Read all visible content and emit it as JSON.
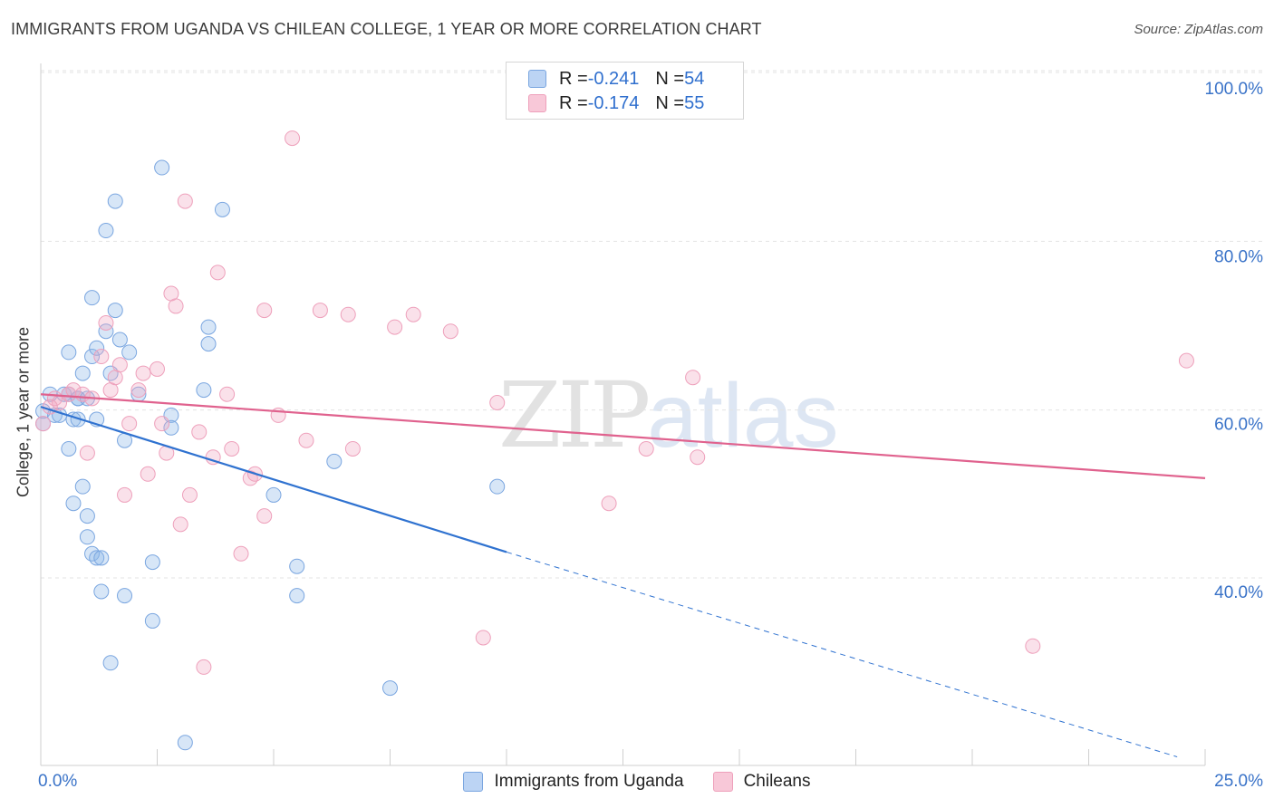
{
  "title": "IMMIGRANTS FROM UGANDA VS CHILEAN COLLEGE, 1 YEAR OR MORE CORRELATION CHART",
  "source": "Source: ZipAtlas.com",
  "watermark": {
    "zip": "ZIP",
    "atlas": "atlas"
  },
  "legend": {
    "rows": [
      {
        "r_label": "R = ",
        "r_value": "-0.241",
        "n_label": "N = ",
        "n_value": "54"
      },
      {
        "r_label": "R = ",
        "r_value": "-0.174",
        "n_label": "N = ",
        "n_value": "55"
      }
    ]
  },
  "chart_data": {
    "type": "scatter",
    "title": "IMMIGRANTS FROM UGANDA VS CHILEAN COLLEGE, 1 YEAR OR MORE CORRELATION CHART",
    "xlabel": "",
    "ylabel": "College, 1 year or more",
    "xlim": [
      0,
      25
    ],
    "ylim": [
      20,
      100
    ],
    "x_tick_labels": [
      "0.0%",
      "25.0%"
    ],
    "y_ticks": [
      40,
      60,
      80,
      100
    ],
    "y_tick_labels": [
      "40.0%",
      "60.0%",
      "80.0%",
      "100.0%"
    ],
    "grid": true,
    "series": [
      {
        "name": "Immigrants from Uganda",
        "color": "#8db7e8",
        "line_color": "#2f72d0",
        "trend": {
          "x0": 0,
          "y0": 62.0,
          "x1": 10.0,
          "y1": 44.7,
          "dash_to_x": 24.4,
          "dash_to_y": 20.3
        },
        "points": [
          [
            0.2,
            63.5
          ],
          [
            0.3,
            61.0
          ],
          [
            0.4,
            61.0
          ],
          [
            0.5,
            63.5
          ],
          [
            0.6,
            57.0
          ],
          [
            0.6,
            63.5
          ],
          [
            0.7,
            60.5
          ],
          [
            0.8,
            63.0
          ],
          [
            0.6,
            68.5
          ],
          [
            0.7,
            50.5
          ],
          [
            0.8,
            60.5
          ],
          [
            0.8,
            63.0
          ],
          [
            0.9,
            66.0
          ],
          [
            0.9,
            52.5
          ],
          [
            1.0,
            63.0
          ],
          [
            1.0,
            49.0
          ],
          [
            1.0,
            46.5
          ],
          [
            1.1,
            68.0
          ],
          [
            1.1,
            44.5
          ],
          [
            1.2,
            69.0
          ],
          [
            1.1,
            75.0
          ],
          [
            1.2,
            44.0
          ],
          [
            1.3,
            44.0
          ],
          [
            1.2,
            60.5
          ],
          [
            1.3,
            40.0
          ],
          [
            1.4,
            71.0
          ],
          [
            1.4,
            83.0
          ],
          [
            1.5,
            66.0
          ],
          [
            1.5,
            31.5
          ],
          [
            1.6,
            86.5
          ],
          [
            1.6,
            73.5
          ],
          [
            1.7,
            70.0
          ],
          [
            1.8,
            39.5
          ],
          [
            1.8,
            58.0
          ],
          [
            1.9,
            68.5
          ],
          [
            2.1,
            63.5
          ],
          [
            2.4,
            43.5
          ],
          [
            2.4,
            36.5
          ],
          [
            2.6,
            90.5
          ],
          [
            2.8,
            61.0
          ],
          [
            2.8,
            59.5
          ],
          [
            3.1,
            22.0
          ],
          [
            3.5,
            64.0
          ],
          [
            3.6,
            71.5
          ],
          [
            3.6,
            69.5
          ],
          [
            3.9,
            85.5
          ],
          [
            5.0,
            51.5
          ],
          [
            5.5,
            43.0
          ],
          [
            5.5,
            39.5
          ],
          [
            6.3,
            55.5
          ],
          [
            7.5,
            28.5
          ],
          [
            9.8,
            52.5
          ],
          [
            0.05,
            60.0
          ],
          [
            0.05,
            61.5
          ]
        ]
      },
      {
        "name": "Chileans",
        "color": "#f2a8c2",
        "line_color": "#e0628e",
        "trend": {
          "x0": 0,
          "y0": 63.5,
          "x1": 25,
          "y1": 53.5
        },
        "points": [
          [
            0.05,
            60.0
          ],
          [
            0.3,
            63.0
          ],
          [
            0.4,
            62.5
          ],
          [
            0.6,
            63.5
          ],
          [
            0.7,
            64.0
          ],
          [
            0.9,
            63.5
          ],
          [
            1.0,
            56.5
          ],
          [
            1.1,
            63.0
          ],
          [
            1.3,
            68.0
          ],
          [
            1.4,
            72.0
          ],
          [
            1.5,
            64.0
          ],
          [
            1.6,
            65.5
          ],
          [
            1.7,
            67.0
          ],
          [
            1.8,
            51.5
          ],
          [
            1.9,
            60.0
          ],
          [
            2.1,
            64.0
          ],
          [
            2.2,
            66.0
          ],
          [
            2.3,
            54.0
          ],
          [
            2.5,
            66.5
          ],
          [
            2.6,
            60.0
          ],
          [
            2.7,
            56.5
          ],
          [
            2.8,
            75.5
          ],
          [
            2.9,
            74.0
          ],
          [
            3.0,
            48.0
          ],
          [
            3.1,
            86.5
          ],
          [
            3.2,
            51.5
          ],
          [
            3.4,
            59.0
          ],
          [
            3.5,
            31.0
          ],
          [
            3.7,
            56.0
          ],
          [
            3.8,
            78.0
          ],
          [
            4.0,
            63.5
          ],
          [
            4.1,
            57.0
          ],
          [
            4.3,
            44.5
          ],
          [
            4.5,
            53.5
          ],
          [
            4.6,
            54.0
          ],
          [
            4.8,
            73.5
          ],
          [
            4.8,
            49.0
          ],
          [
            5.1,
            61.0
          ],
          [
            5.4,
            94.0
          ],
          [
            5.7,
            58.0
          ],
          [
            6.0,
            73.5
          ],
          [
            6.6,
            73.0
          ],
          [
            6.7,
            57.0
          ],
          [
            7.6,
            71.5
          ],
          [
            8.0,
            73.0
          ],
          [
            8.8,
            71.0
          ],
          [
            9.5,
            34.5
          ],
          [
            9.8,
            62.5
          ],
          [
            12.2,
            50.5
          ],
          [
            13.0,
            57.0
          ],
          [
            14.0,
            65.5
          ],
          [
            14.1,
            56.0
          ],
          [
            21.3,
            33.5
          ],
          [
            24.6,
            67.5
          ],
          [
            0.2,
            62.0
          ]
        ]
      }
    ]
  }
}
